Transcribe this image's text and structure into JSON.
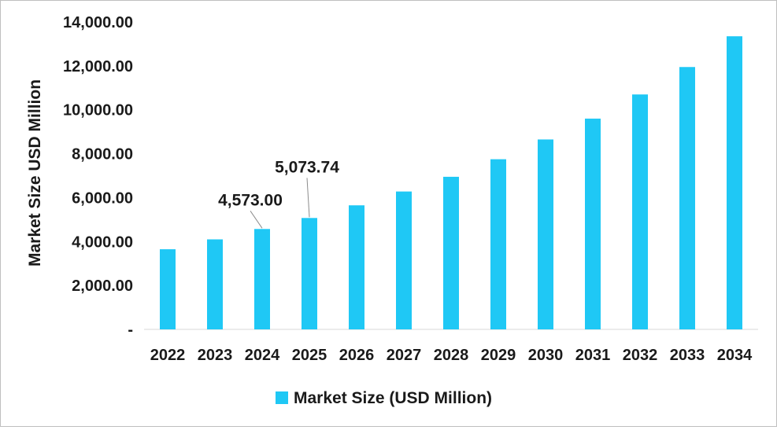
{
  "chart_data": {
    "type": "bar",
    "title": "",
    "xlabel": "",
    "ylabel": "Market Size USD Million",
    "categories": [
      "2022",
      "2023",
      "2024",
      "2025",
      "2026",
      "2027",
      "2028",
      "2029",
      "2030",
      "2031",
      "2032",
      "2033",
      "2034"
    ],
    "series": [
      {
        "name": "Market Size (USD Million)",
        "values": [
          3650,
          4100,
          4573.0,
          5073.74,
          5650,
          6280,
          6950,
          7750,
          8650,
          9600,
          10700,
          11950,
          13350
        ]
      }
    ],
    "ylim": [
      0,
      14000
    ],
    "yticks": [
      0,
      2000,
      4000,
      6000,
      8000,
      10000,
      12000,
      14000
    ],
    "ytick_labels": [
      "-",
      "2,000.00",
      "4,000.00",
      "6,000.00",
      "8,000.00",
      "10,000.00",
      "12,000.00",
      "14,000.00"
    ],
    "annotations": [
      {
        "category": "2024",
        "label": "4,573.00"
      },
      {
        "category": "2025",
        "label": "5,073.74"
      }
    ],
    "legend_position": "bottom",
    "gridlines": false,
    "bar_color": "#1fc8f5"
  }
}
